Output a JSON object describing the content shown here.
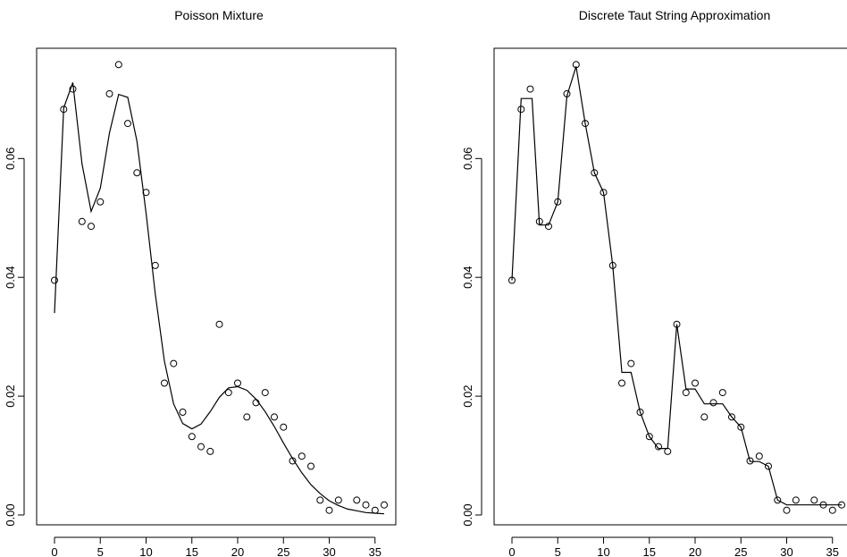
{
  "chart_data": [
    {
      "type": "scatter",
      "title": "Poisson Mixture",
      "xlabel": "",
      "ylabel": "",
      "xlim": [
        0,
        36
      ],
      "ylim": [
        0,
        0.076
      ],
      "x_ticks": [
        "0",
        "5",
        "10",
        "15",
        "20",
        "25",
        "30",
        "35"
      ],
      "y_ticks": [
        "0.00",
        "0.02",
        "0.04",
        "0.06"
      ],
      "grid": false,
      "series": [
        {
          "kind": "points",
          "x": [
            0,
            1,
            2,
            3,
            4,
            5,
            6,
            7,
            8,
            9,
            10,
            11,
            12,
            13,
            14,
            15,
            16,
            17,
            18,
            19,
            20,
            21,
            22,
            23,
            24,
            25,
            26,
            27,
            28,
            29,
            30,
            31,
            33,
            34,
            35,
            36
          ],
          "y": [
            0.0395,
            0.0683,
            0.0717,
            0.0494,
            0.0486,
            0.0527,
            0.0709,
            0.0758,
            0.0659,
            0.0576,
            0.0543,
            0.042,
            0.0222,
            0.0255,
            0.0173,
            0.0132,
            0.0115,
            0.0107,
            0.0321,
            0.0206,
            0.0222,
            0.0165,
            0.0189,
            0.0206,
            0.0165,
            0.0148,
            0.0091,
            0.0099,
            0.0082,
            0.0025,
            0.0008,
            0.0025,
            0.0025,
            0.0017,
            0.0008,
            0.0017
          ]
        },
        {
          "kind": "line",
          "x": [
            0,
            1,
            2,
            3,
            4,
            5,
            6,
            7,
            8,
            9,
            10,
            11,
            12,
            13,
            14,
            15,
            16,
            17,
            18,
            19,
            20,
            21,
            22,
            23,
            24,
            25,
            26,
            27,
            28,
            29,
            30,
            31,
            32,
            33,
            34,
            35,
            36
          ],
          "y": [
            0.034,
            0.0685,
            0.0728,
            0.0591,
            0.0511,
            0.055,
            0.0643,
            0.0708,
            0.0703,
            0.0629,
            0.0508,
            0.0372,
            0.0259,
            0.0187,
            0.0154,
            0.0145,
            0.0153,
            0.0174,
            0.0198,
            0.0214,
            0.0216,
            0.021,
            0.0195,
            0.0174,
            0.0149,
            0.0121,
            0.0095,
            0.0071,
            0.0051,
            0.0036,
            0.0024,
            0.0016,
            0.001,
            0.0007,
            0.0004,
            0.0003,
            0.0002
          ]
        }
      ]
    },
    {
      "type": "scatter",
      "title": "Discrete Taut String Approximation",
      "xlabel": "",
      "ylabel": "",
      "xlim": [
        0,
        36
      ],
      "ylim": [
        0,
        0.076
      ],
      "x_ticks": [
        "0",
        "5",
        "10",
        "15",
        "20",
        "25",
        "30",
        "35"
      ],
      "y_ticks": [
        "0.00",
        "0.02",
        "0.04",
        "0.06"
      ],
      "grid": false,
      "series": [
        {
          "kind": "points",
          "x": [
            0,
            1,
            2,
            3,
            4,
            5,
            6,
            7,
            8,
            9,
            10,
            11,
            12,
            13,
            14,
            15,
            16,
            17,
            18,
            19,
            20,
            21,
            22,
            23,
            24,
            25,
            26,
            27,
            28,
            29,
            30,
            31,
            33,
            34,
            35,
            36
          ],
          "y": [
            0.0395,
            0.0683,
            0.0717,
            0.0494,
            0.0486,
            0.0527,
            0.0709,
            0.0758,
            0.0659,
            0.0576,
            0.0543,
            0.042,
            0.0222,
            0.0255,
            0.0173,
            0.0132,
            0.0115,
            0.0107,
            0.0321,
            0.0206,
            0.0222,
            0.0165,
            0.0189,
            0.0206,
            0.0165,
            0.0148,
            0.0091,
            0.0099,
            0.0082,
            0.0025,
            0.0008,
            0.0025,
            0.0025,
            0.0017,
            0.0008,
            0.0017
          ]
        },
        {
          "kind": "line",
          "x": [
            0,
            1,
            1.9,
            2.2,
            3,
            4,
            5,
            6,
            7,
            8,
            9,
            10,
            11,
            12,
            13,
            14,
            15,
            16,
            17,
            18,
            19,
            20,
            21,
            22,
            23,
            24,
            25,
            26,
            27,
            28,
            29,
            30,
            31,
            32,
            33,
            34,
            35,
            36
          ],
          "y": [
            0.0395,
            0.0701,
            0.0701,
            0.0701,
            0.0488,
            0.0488,
            0.0527,
            0.0705,
            0.0755,
            0.0659,
            0.0576,
            0.0543,
            0.042,
            0.024,
            0.024,
            0.0173,
            0.0132,
            0.0112,
            0.0112,
            0.0321,
            0.0212,
            0.0212,
            0.0187,
            0.0187,
            0.0187,
            0.0165,
            0.0148,
            0.009,
            0.009,
            0.0082,
            0.0025,
            0.0017,
            0.0017,
            0.0017,
            0.0017,
            0.0017,
            0.0017,
            0.0017
          ]
        }
      ]
    }
  ]
}
